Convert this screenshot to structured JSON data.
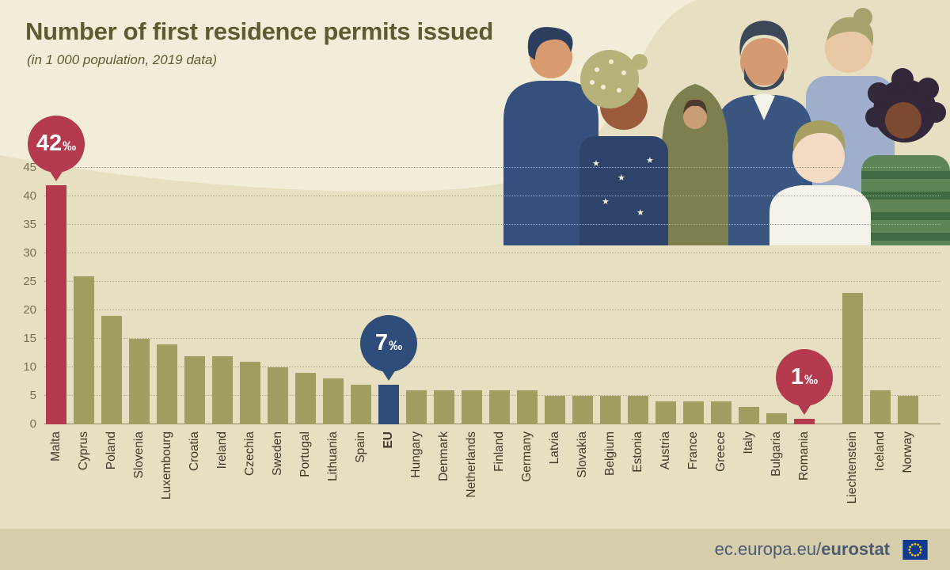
{
  "header": {
    "title": "Number of first residence permits issued",
    "subtitle": "(in 1 000 population, 2019 data)"
  },
  "footer": {
    "url_prefix": "ec.europa.eu/",
    "brand": "eurostat",
    "logo": "eu-flag-icon"
  },
  "colors": {
    "background": "#e7dfc1",
    "top_band": "#f2edd8",
    "bar_default": "#a29d61",
    "highlight_red": "#b43a4d",
    "highlight_blue": "#2f4d7a",
    "title_text": "#5e5b33",
    "footer_bg": "#d6cdaa",
    "footer_text": "#4c5b72"
  },
  "chart_data": {
    "type": "bar",
    "title": "Number of first residence permits issued",
    "subtitle": "(in 1 000 population, 2019 data)",
    "unit": "per 1 000 population (‰)",
    "ylim": [
      0,
      45
    ],
    "yticks": [
      0,
      5,
      10,
      15,
      20,
      25,
      30,
      35,
      40,
      45
    ],
    "grid": "dotted horizontal",
    "legend_position": "none",
    "categories": [
      "Malta",
      "Cyprus",
      "Poland",
      "Slovenia",
      "Luxembourg",
      "Croatia",
      "Ireland",
      "Czechia",
      "Sweden",
      "Portugal",
      "Lithuania",
      "Spain",
      "EU",
      "Hungary",
      "Denmark",
      "Netherlands",
      "Finland",
      "Germany",
      "Latvia",
      "Slovakia",
      "Belgium",
      "Estonia",
      "Austria",
      "France",
      "Greece",
      "Italy",
      "Bulgaria",
      "Romania",
      "Liechtenstein",
      "Iceland",
      "Norway"
    ],
    "values": [
      42,
      26,
      19,
      15,
      14,
      12,
      12,
      11,
      10,
      9,
      8,
      7,
      7,
      6,
      6,
      6,
      6,
      6,
      5,
      5,
      5,
      5,
      4,
      4,
      4,
      3,
      2,
      1,
      23,
      6,
      5
    ],
    "bar_color": "#a29d61",
    "highlights": {
      "Malta": "#b43a4d",
      "EU": "#2f4d7a",
      "Romania": "#b43a4d"
    },
    "bold_labels": [
      "EU"
    ],
    "gap_before": "Liechtenstein",
    "callouts": [
      {
        "category": "Malta",
        "num": "42",
        "sym": "‰",
        "color": "#b43a4d"
      },
      {
        "category": "EU",
        "num": "7",
        "sym": "‰",
        "color": "#2f4d7a"
      },
      {
        "category": "Romania",
        "num": "1",
        "sym": "‰",
        "color": "#b43a4d"
      }
    ]
  }
}
